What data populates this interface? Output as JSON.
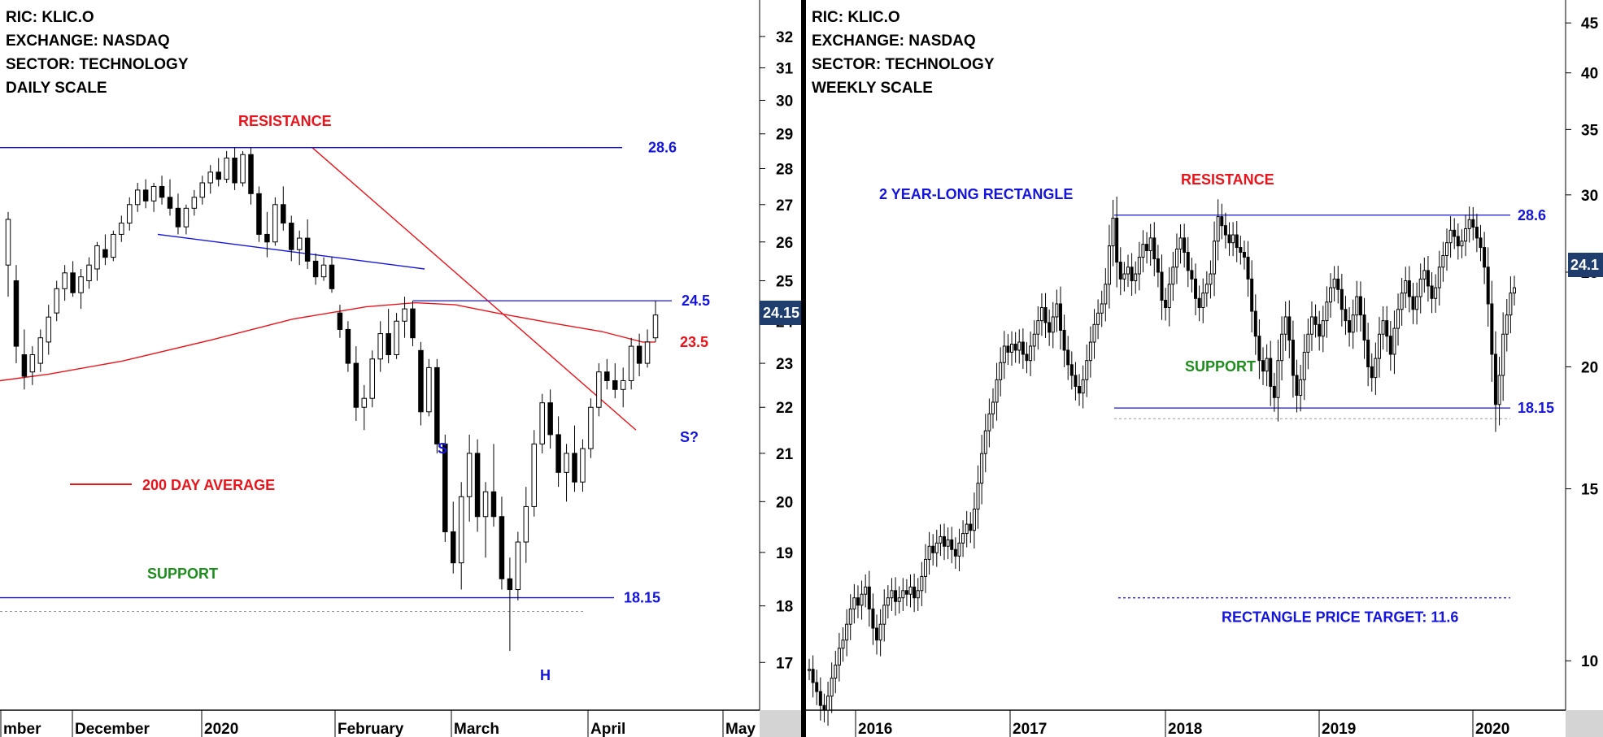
{
  "colors": {
    "red": "#e8141c",
    "blue": "#1414dc",
    "green": "#1e8c1e",
    "price_badge": "#1f3e6e",
    "axis_bg": "#d4d4d4"
  },
  "chart_data": [
    {
      "type": "candlestick",
      "header": [
        "RIC: KLIC.O",
        "EXCHANGE: NASDAQ",
        "SECTOR: TECHNOLOGY",
        "DAILY SCALE"
      ],
      "y_axis_ticks": [
        32,
        31,
        30,
        29,
        28,
        27,
        26,
        25,
        24,
        23,
        22,
        21,
        20,
        19,
        18,
        17
      ],
      "y_axis_scale": "log",
      "ylim": [
        16.2,
        33.2
      ],
      "x_axis_labels": [
        "mber",
        "December",
        "2020",
        "February",
        "March",
        "April",
        "May"
      ],
      "last_price": "24.15",
      "levels": [
        {
          "name": "resistance",
          "value": 28.6,
          "label": "28.6",
          "color": "#1414dc"
        },
        {
          "name": "neckline",
          "value": 24.5,
          "label": "24.5",
          "color": "#1414dc"
        },
        {
          "name": "ma200",
          "value": 23.5,
          "label": "23.5",
          "color": "#e8141c"
        },
        {
          "name": "support",
          "value": 18.15,
          "label": "18.15",
          "color": "#1414dc"
        }
      ],
      "annotations": {
        "resistance": "RESISTANCE",
        "support": "SUPPORT",
        "ma_legend": "200 DAY AVERAGE",
        "left_shoulder": "S",
        "head": "H",
        "right_shoulder": "S?"
      },
      "candles": [
        {
          "o": 25.4,
          "h": 26.8,
          "l": 24.6,
          "c": 26.6
        },
        {
          "o": 25.0,
          "h": 25.4,
          "l": 23.0,
          "c": 23.4
        },
        {
          "o": 23.2,
          "h": 23.8,
          "l": 22.4,
          "c": 22.7
        },
        {
          "o": 22.8,
          "h": 23.4,
          "l": 22.5,
          "c": 23.2
        },
        {
          "o": 23.0,
          "h": 23.8,
          "l": 22.8,
          "c": 23.6
        },
        {
          "o": 23.5,
          "h": 24.4,
          "l": 23.2,
          "c": 24.1
        },
        {
          "o": 24.2,
          "h": 25.0,
          "l": 24.0,
          "c": 24.8
        },
        {
          "o": 24.8,
          "h": 25.4,
          "l": 24.5,
          "c": 25.2
        },
        {
          "o": 25.2,
          "h": 25.5,
          "l": 24.6,
          "c": 24.7
        },
        {
          "o": 24.7,
          "h": 25.3,
          "l": 24.3,
          "c": 25.1
        },
        {
          "o": 25.0,
          "h": 25.6,
          "l": 24.8,
          "c": 25.4
        },
        {
          "o": 25.3,
          "h": 26.0,
          "l": 25.0,
          "c": 25.9
        },
        {
          "o": 25.8,
          "h": 26.2,
          "l": 25.4,
          "c": 25.6
        },
        {
          "o": 25.6,
          "h": 26.3,
          "l": 25.5,
          "c": 26.2
        },
        {
          "o": 26.2,
          "h": 26.7,
          "l": 26.0,
          "c": 26.5
        },
        {
          "o": 26.5,
          "h": 27.2,
          "l": 26.3,
          "c": 27.0
        },
        {
          "o": 27.0,
          "h": 27.6,
          "l": 26.8,
          "c": 27.4
        },
        {
          "o": 27.4,
          "h": 27.7,
          "l": 26.9,
          "c": 27.1
        },
        {
          "o": 27.1,
          "h": 27.6,
          "l": 26.8,
          "c": 27.5
        },
        {
          "o": 27.5,
          "h": 27.8,
          "l": 27.0,
          "c": 27.2
        },
        {
          "o": 27.2,
          "h": 27.7,
          "l": 26.7,
          "c": 26.9
        },
        {
          "o": 26.9,
          "h": 27.3,
          "l": 26.2,
          "c": 26.4
        },
        {
          "o": 26.4,
          "h": 27.0,
          "l": 26.2,
          "c": 26.9
        },
        {
          "o": 26.9,
          "h": 27.4,
          "l": 26.7,
          "c": 27.2
        },
        {
          "o": 27.2,
          "h": 27.8,
          "l": 27.0,
          "c": 27.6
        },
        {
          "o": 27.6,
          "h": 28.1,
          "l": 27.3,
          "c": 27.9
        },
        {
          "o": 27.9,
          "h": 28.3,
          "l": 27.5,
          "c": 27.7
        },
        {
          "o": 27.7,
          "h": 28.5,
          "l": 27.6,
          "c": 28.3
        },
        {
          "o": 28.3,
          "h": 28.6,
          "l": 27.4,
          "c": 27.6
        },
        {
          "o": 27.6,
          "h": 28.5,
          "l": 27.5,
          "c": 28.4
        },
        {
          "o": 28.4,
          "h": 28.6,
          "l": 27.0,
          "c": 27.3
        },
        {
          "o": 27.3,
          "h": 27.5,
          "l": 26.0,
          "c": 26.2
        },
        {
          "o": 26.2,
          "h": 26.8,
          "l": 25.6,
          "c": 26.0
        },
        {
          "o": 26.0,
          "h": 27.2,
          "l": 25.9,
          "c": 27.0
        },
        {
          "o": 27.0,
          "h": 27.5,
          "l": 26.3,
          "c": 26.5
        },
        {
          "o": 26.5,
          "h": 26.7,
          "l": 25.5,
          "c": 25.8
        },
        {
          "o": 25.8,
          "h": 26.3,
          "l": 25.4,
          "c": 26.1
        },
        {
          "o": 26.1,
          "h": 26.6,
          "l": 25.3,
          "c": 25.5
        },
        {
          "o": 25.5,
          "h": 25.7,
          "l": 24.9,
          "c": 25.1
        },
        {
          "o": 25.1,
          "h": 25.6,
          "l": 25.0,
          "c": 25.4
        },
        {
          "o": 25.4,
          "h": 25.6,
          "l": 24.7,
          "c": 24.8
        },
        {
          "o": 24.2,
          "h": 24.4,
          "l": 23.6,
          "c": 23.8
        },
        {
          "o": 23.8,
          "h": 24.0,
          "l": 22.8,
          "c": 23.0
        },
        {
          "o": 23.0,
          "h": 23.4,
          "l": 21.7,
          "c": 22.0
        },
        {
          "o": 22.0,
          "h": 22.5,
          "l": 21.5,
          "c": 22.2
        },
        {
          "o": 22.2,
          "h": 23.3,
          "l": 22.0,
          "c": 23.1
        },
        {
          "o": 23.1,
          "h": 24.0,
          "l": 22.8,
          "c": 23.7
        },
        {
          "o": 23.7,
          "h": 24.3,
          "l": 23.0,
          "c": 23.2
        },
        {
          "o": 23.2,
          "h": 24.2,
          "l": 23.1,
          "c": 24.0
        },
        {
          "o": 24.0,
          "h": 24.6,
          "l": 23.6,
          "c": 24.3
        },
        {
          "o": 24.3,
          "h": 24.5,
          "l": 23.4,
          "c": 23.6
        },
        {
          "o": 23.3,
          "h": 23.5,
          "l": 21.6,
          "c": 21.9
        },
        {
          "o": 21.9,
          "h": 23.1,
          "l": 21.8,
          "c": 22.9
        },
        {
          "o": 22.9,
          "h": 23.1,
          "l": 21.0,
          "c": 21.2
        },
        {
          "o": 21.2,
          "h": 21.4,
          "l": 19.2,
          "c": 19.4
        },
        {
          "o": 19.4,
          "h": 20.0,
          "l": 18.6,
          "c": 18.8
        },
        {
          "o": 18.8,
          "h": 20.4,
          "l": 18.3,
          "c": 20.1
        },
        {
          "o": 20.1,
          "h": 21.4,
          "l": 19.6,
          "c": 21.0
        },
        {
          "o": 21.0,
          "h": 21.3,
          "l": 19.4,
          "c": 19.7
        },
        {
          "o": 19.7,
          "h": 20.4,
          "l": 18.9,
          "c": 20.2
        },
        {
          "o": 20.2,
          "h": 21.2,
          "l": 19.5,
          "c": 19.7
        },
        {
          "o": 19.7,
          "h": 20.1,
          "l": 18.3,
          "c": 18.5
        },
        {
          "o": 18.5,
          "h": 18.9,
          "l": 17.2,
          "c": 18.3
        },
        {
          "o": 18.3,
          "h": 19.4,
          "l": 18.1,
          "c": 19.2
        },
        {
          "o": 19.2,
          "h": 20.3,
          "l": 18.8,
          "c": 19.9
        },
        {
          "o": 19.9,
          "h": 21.5,
          "l": 19.7,
          "c": 21.2
        },
        {
          "o": 21.2,
          "h": 22.3,
          "l": 21.0,
          "c": 22.1
        },
        {
          "o": 22.1,
          "h": 22.4,
          "l": 21.1,
          "c": 21.4
        },
        {
          "o": 21.4,
          "h": 21.8,
          "l": 20.3,
          "c": 20.6
        },
        {
          "o": 20.6,
          "h": 21.2,
          "l": 20.0,
          "c": 21.0
        },
        {
          "o": 21.0,
          "h": 21.6,
          "l": 20.2,
          "c": 20.4
        },
        {
          "o": 20.4,
          "h": 21.3,
          "l": 20.2,
          "c": 21.1
        },
        {
          "o": 21.1,
          "h": 22.2,
          "l": 20.9,
          "c": 22.0
        },
        {
          "o": 22.0,
          "h": 23.0,
          "l": 21.8,
          "c": 22.8
        },
        {
          "o": 22.8,
          "h": 23.1,
          "l": 22.4,
          "c": 22.6
        },
        {
          "o": 22.6,
          "h": 23.0,
          "l": 22.2,
          "c": 22.4
        },
        {
          "o": 22.4,
          "h": 22.9,
          "l": 22.0,
          "c": 22.6
        },
        {
          "o": 22.6,
          "h": 23.6,
          "l": 22.4,
          "c": 23.4
        },
        {
          "o": 23.4,
          "h": 23.7,
          "l": 22.7,
          "c": 23.0
        },
        {
          "o": 23.0,
          "h": 23.8,
          "l": 22.9,
          "c": 23.5
        },
        {
          "o": 23.6,
          "h": 24.5,
          "l": 23.5,
          "c": 24.15
        }
      ]
    },
    {
      "type": "candlestick",
      "header": [
        "RIC: KLIC.O",
        "EXCHANGE: NASDAQ",
        "SECTOR: TECHNOLOGY",
        "WEEKLY SCALE"
      ],
      "y_axis_ticks": [
        45,
        40,
        35,
        30,
        25,
        20,
        15,
        10
      ],
      "y_axis_scale": "log",
      "ylim": [
        8.9,
        47.5
      ],
      "x_axis_labels": [
        "2016",
        "2017",
        "2018",
        "2019",
        "2020"
      ],
      "last_price": "24.1",
      "levels": [
        {
          "name": "resistance",
          "value": 28.6,
          "label": "28.6",
          "color": "#1414dc"
        },
        {
          "name": "support",
          "value": 18.15,
          "label": "18.15",
          "color": "#1414dc"
        },
        {
          "name": "target",
          "value": 11.6,
          "label": "RECTANGLE PRICE TARGET: 11.6",
          "color": "#1414dc"
        }
      ],
      "annotations": {
        "pattern": "2 YEAR-LONG RECTANGLE",
        "resistance": "RESISTANCE",
        "support": "SUPPORT"
      },
      "closes": [
        9.8,
        9.5,
        9.3,
        9.0,
        8.9,
        9.2,
        9.6,
        9.9,
        10.3,
        10.5,
        10.9,
        11.3,
        11.6,
        11.4,
        11.7,
        11.9,
        11.3,
        10.8,
        10.5,
        10.9,
        11.4,
        11.6,
        11.8,
        11.5,
        11.6,
        11.8,
        11.7,
        11.9,
        11.6,
        11.8,
        12.2,
        12.7,
        13.1,
        12.9,
        13.2,
        13.4,
        13.1,
        13.3,
        13.0,
        12.8,
        13.2,
        13.5,
        13.8,
        13.6,
        14.3,
        15.2,
        16.3,
        17.2,
        17.9,
        18.4,
        19.4,
        20.2,
        21.0,
        20.7,
        21.1,
        20.8,
        21.2,
        20.6,
        20.3,
        21.0,
        21.6,
        22.3,
        23.0,
        22.2,
        21.7,
        22.5,
        23.2,
        21.8,
        20.8,
        20.1,
        19.6,
        19.1,
        18.8,
        19.4,
        20.3,
        21.2,
        22.1,
        22.7,
        23.2,
        24.3,
        26.6,
        28.4,
        25.6,
        24.6,
        24.9,
        25.3,
        24.5,
        24.9,
        25.9,
        26.7,
        26.3,
        27.1,
        25.8,
        25.0,
        23.4,
        23.0,
        24.3,
        25.3,
        26.4,
        27.1,
        26.2,
        25.1,
        24.6,
        23.5,
        23.0,
        23.8,
        24.3,
        24.9,
        26.9,
        28.5,
        27.9,
        27.3,
        26.8,
        27.3,
        26.5,
        26.2,
        25.9,
        24.6,
        22.8,
        21.5,
        20.3,
        19.8,
        20.4,
        19.1,
        18.6,
        20.3,
        21.6,
        22.5,
        21.3,
        19.6,
        18.7,
        19.4,
        20.7,
        21.6,
        22.5,
        22.1,
        21.5,
        22.3,
        23.3,
        24.1,
        24.6,
        24.0,
        22.9,
        22.3,
        21.7,
        22.6,
        23.6,
        22.6,
        21.3,
        20.0,
        19.5,
        20.4,
        21.6,
        22.3,
        21.5,
        20.6,
        21.9,
        22.9,
        23.8,
        24.5,
        23.6,
        22.9,
        23.6,
        24.6,
        25.1,
        24.2,
        23.5,
        24.1,
        25.3,
        26.0,
        26.8,
        27.6,
        27.2,
        26.6,
        26.9,
        27.7,
        28.3,
        27.8,
        27.1,
        26.5,
        25.3,
        23.2,
        20.6,
        18.3,
        19.6,
        21.6,
        22.6,
        23.8,
        24.1
      ]
    }
  ]
}
